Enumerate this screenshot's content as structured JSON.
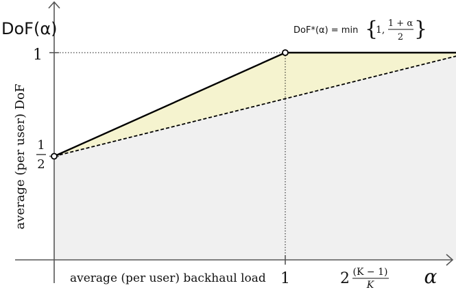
{
  "chart_data": {
    "type": "line",
    "title": "",
    "ylabel": "DoF(α)",
    "xlabel": "α",
    "y_axis_caption": "average (per user) DoF",
    "x_axis_caption": "average (per user) backhaul load",
    "annotation": {
      "lhs": "DoF*(α) = min",
      "one": "1,",
      "frac_num": "1 + α",
      "frac_den": "2"
    },
    "x_ticks": [
      {
        "x": 1,
        "label": "1"
      },
      {
        "x": 1.8,
        "label_main": "2",
        "frac_num": "(K − 1)",
        "frac_den": "K"
      }
    ],
    "y_ticks": [
      {
        "y": 0.5,
        "frac_num": "1",
        "frac_den": "2"
      },
      {
        "y": 1,
        "label": "1"
      }
    ],
    "xlim": [
      0,
      2.5
    ],
    "ylim": [
      0,
      1.0
    ],
    "series": [
      {
        "style": "solid",
        "x": [
          0,
          1,
          2.5
        ],
        "y": [
          0.5,
          1,
          1
        ]
      },
      {
        "style": "dashed",
        "x": [
          0,
          1.8
        ],
        "y": [
          0.5,
          1
        ]
      }
    ],
    "markers": [
      {
        "x": 0,
        "y": 0.5
      },
      {
        "x": 1,
        "y": 1
      },
      {
        "x": 1.8,
        "y": 1
      }
    ],
    "colors": {
      "achievable_region": "#f0f0f0",
      "gap_region": "#f5f3cf",
      "curve": "#000000"
    }
  }
}
